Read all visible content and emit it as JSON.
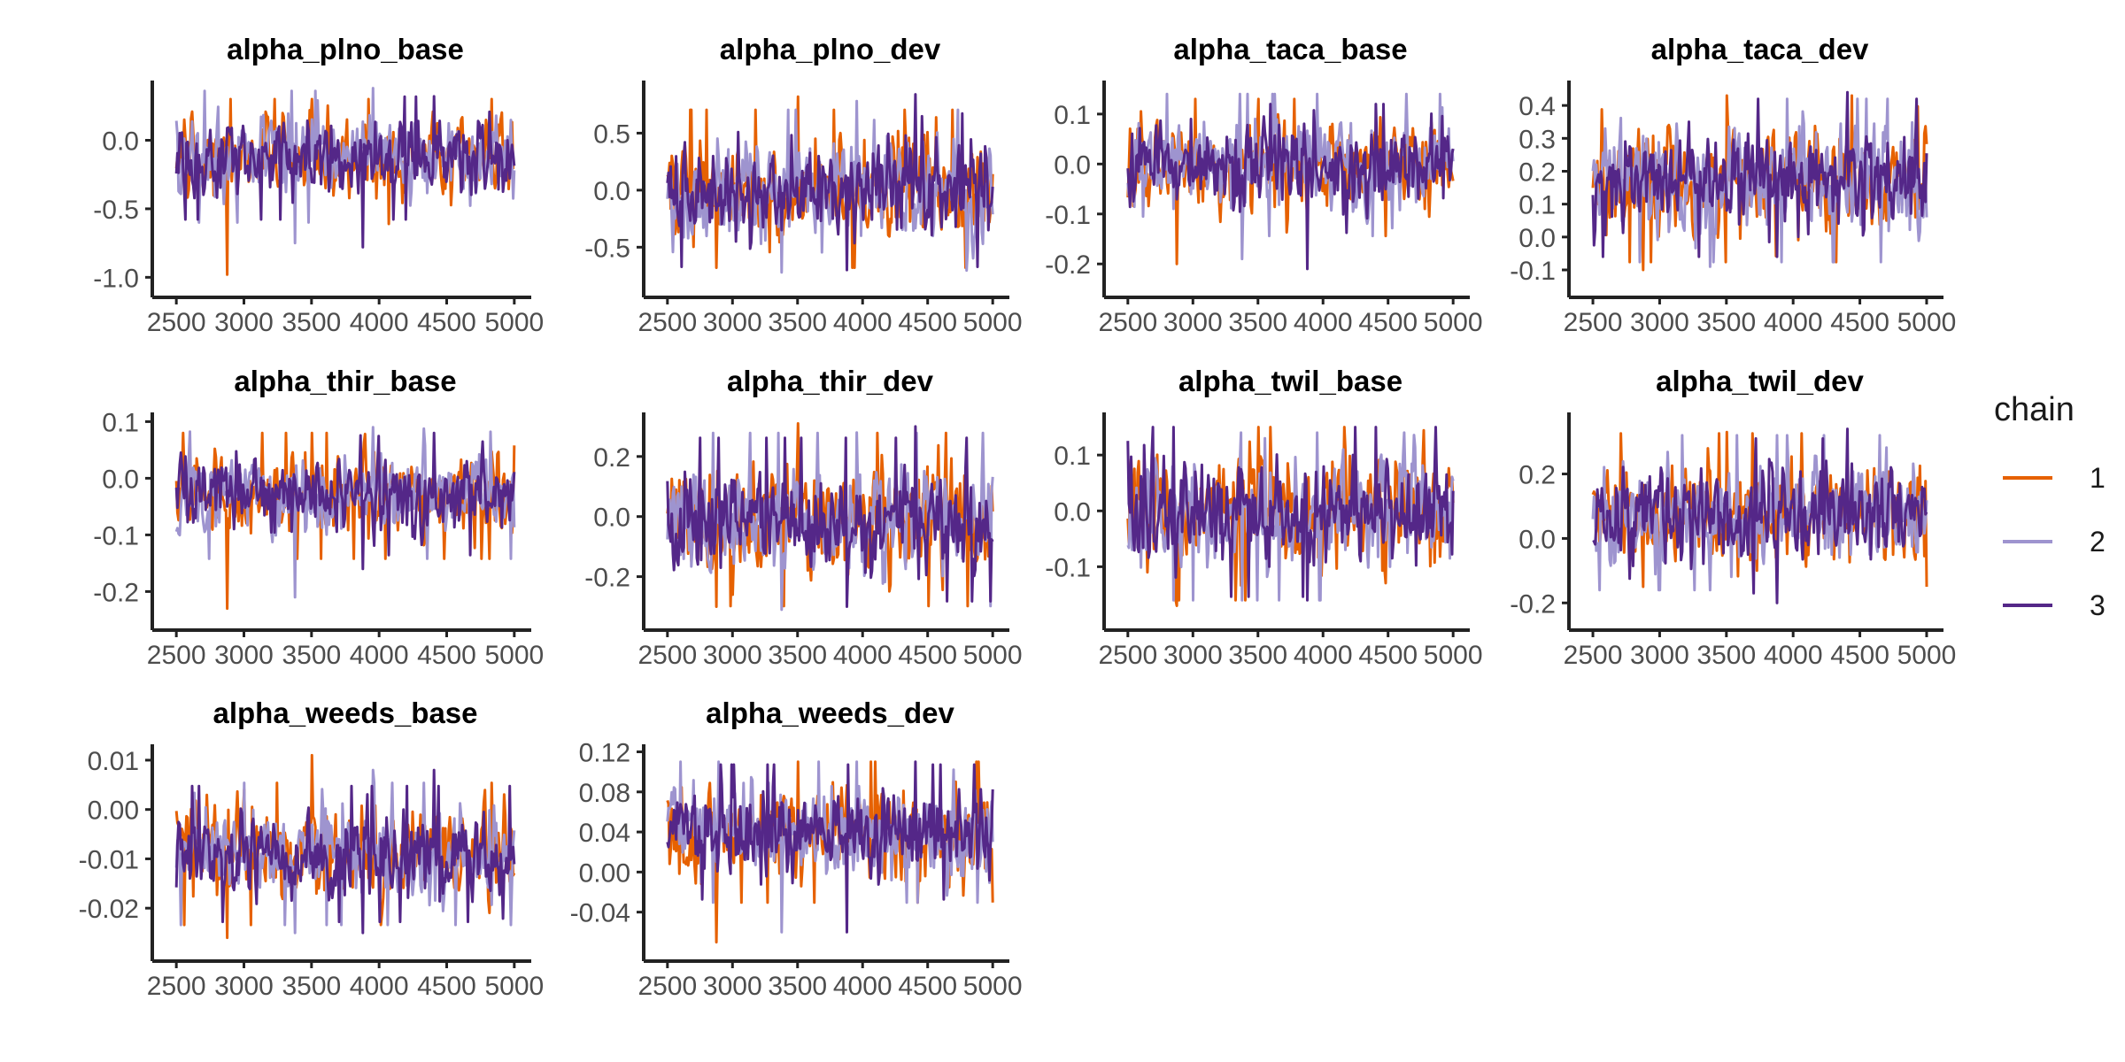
{
  "legend": {
    "title": "chain",
    "position": "right",
    "entries": [
      {
        "label": "1",
        "color": "#E66101"
      },
      {
        "label": "2",
        "color": "#9E94CF"
      },
      {
        "label": "3",
        "color": "#542788"
      }
    ]
  },
  "chart_data": [
    {
      "type": "line",
      "title": "alpha_plno_base",
      "xticks": [
        "2500",
        "3000",
        "3500",
        "4000",
        "4500",
        "5000"
      ],
      "xlim": [
        2440,
        5060
      ],
      "yticks": [
        {
          "v": 0.0,
          "label": "0.0"
        },
        {
          "v": -0.5,
          "label": "-0.5"
        },
        {
          "v": -1.0,
          "label": "-1.0"
        }
      ],
      "ylim": [
        -1.03,
        0.41
      ],
      "chains": [
        {
          "name": "1",
          "center": -0.13,
          "spread": 0.15,
          "min": -0.98,
          "max": 0.3
        },
        {
          "name": "2",
          "center": -0.12,
          "spread": 0.15,
          "min": -0.75,
          "max": 0.38
        },
        {
          "name": "3",
          "center": -0.13,
          "spread": 0.14,
          "min": -0.78,
          "max": 0.32
        }
      ]
    },
    {
      "type": "line",
      "title": "alpha_plno_dev",
      "xticks": [
        "2500",
        "3000",
        "3500",
        "4000",
        "4500",
        "5000"
      ],
      "xlim": [
        2440,
        5060
      ],
      "yticks": [
        {
          "v": 0.5,
          "label": "0.5"
        },
        {
          "v": 0.0,
          "label": "0.0"
        },
        {
          "v": -0.5,
          "label": "-0.5"
        }
      ],
      "ylim": [
        -0.8,
        0.93
      ],
      "chains": [
        {
          "name": "1",
          "center": 0.0,
          "spread": 0.22,
          "min": -0.68,
          "max": 0.82
        },
        {
          "name": "2",
          "center": 0.0,
          "spread": 0.22,
          "min": -0.72,
          "max": 0.78
        },
        {
          "name": "3",
          "center": 0.0,
          "spread": 0.21,
          "min": -0.7,
          "max": 0.84
        }
      ]
    },
    {
      "type": "line",
      "title": "alpha_taca_base",
      "xticks": [
        "2500",
        "3000",
        "3500",
        "4000",
        "4500",
        "5000"
      ],
      "xlim": [
        2440,
        5060
      ],
      "yticks": [
        {
          "v": 0.1,
          "label": "0.1"
        },
        {
          "v": 0.0,
          "label": "0.0"
        },
        {
          "v": -0.1,
          "label": "-0.1"
        },
        {
          "v": -0.2,
          "label": "-0.2"
        }
      ],
      "ylim": [
        -0.235,
        0.16
      ],
      "chains": [
        {
          "name": "1",
          "center": 0.0,
          "spread": 0.045,
          "min": -0.2,
          "max": 0.13
        },
        {
          "name": "2",
          "center": 0.0,
          "spread": 0.045,
          "min": -0.19,
          "max": 0.14
        },
        {
          "name": "3",
          "center": 0.0,
          "spread": 0.043,
          "min": -0.21,
          "max": 0.12
        }
      ]
    },
    {
      "type": "line",
      "title": "alpha_taca_dev",
      "xticks": [
        "2500",
        "3000",
        "3500",
        "4000",
        "4500",
        "5000"
      ],
      "xlim": [
        2440,
        5060
      ],
      "yticks": [
        {
          "v": 0.4,
          "label": "0.4"
        },
        {
          "v": 0.3,
          "label": "0.3"
        },
        {
          "v": 0.2,
          "label": "0.2"
        },
        {
          "v": 0.1,
          "label": "0.1"
        },
        {
          "v": 0.0,
          "label": "0.0"
        },
        {
          "v": -0.1,
          "label": "-0.1"
        }
      ],
      "ylim": [
        -0.135,
        0.465
      ],
      "chains": [
        {
          "name": "1",
          "center": 0.18,
          "spread": 0.08,
          "min": -0.1,
          "max": 0.43
        },
        {
          "name": "2",
          "center": 0.18,
          "spread": 0.08,
          "min": -0.09,
          "max": 0.42
        },
        {
          "name": "3",
          "center": 0.18,
          "spread": 0.075,
          "min": -0.06,
          "max": 0.44
        }
      ]
    },
    {
      "type": "line",
      "title": "alpha_thir_base",
      "xticks": [
        "2500",
        "3000",
        "3500",
        "4000",
        "4500",
        "5000"
      ],
      "xlim": [
        2440,
        5060
      ],
      "yticks": [
        {
          "v": 0.1,
          "label": "0.1"
        },
        {
          "v": 0.0,
          "label": "0.0"
        },
        {
          "v": -0.1,
          "label": "-0.1"
        },
        {
          "v": -0.2,
          "label": "-0.2"
        }
      ],
      "ylim": [
        -0.24,
        0.11
      ],
      "chains": [
        {
          "name": "1",
          "center": -0.03,
          "spread": 0.035,
          "min": -0.23,
          "max": 0.08
        },
        {
          "name": "2",
          "center": -0.03,
          "spread": 0.035,
          "min": -0.21,
          "max": 0.09
        },
        {
          "name": "3",
          "center": -0.03,
          "spread": 0.033,
          "min": -0.16,
          "max": 0.08
        }
      ]
    },
    {
      "type": "line",
      "title": "alpha_thir_dev",
      "xticks": [
        "2500",
        "3000",
        "3500",
        "4000",
        "4500",
        "5000"
      ],
      "xlim": [
        2440,
        5060
      ],
      "yticks": [
        {
          "v": 0.2,
          "label": "0.2"
        },
        {
          "v": 0.0,
          "label": "0.0"
        },
        {
          "v": -0.2,
          "label": "-0.2"
        }
      ],
      "ylim": [
        -0.325,
        0.335
      ],
      "chains": [
        {
          "name": "1",
          "center": -0.01,
          "spread": 0.09,
          "min": -0.3,
          "max": 0.31
        },
        {
          "name": "2",
          "center": -0.01,
          "spread": 0.09,
          "min": -0.31,
          "max": 0.28
        },
        {
          "name": "3",
          "center": -0.01,
          "spread": 0.085,
          "min": -0.3,
          "max": 0.3
        }
      ]
    },
    {
      "type": "line",
      "title": "alpha_twil_base",
      "xticks": [
        "2500",
        "3000",
        "3500",
        "4000",
        "4500",
        "5000"
      ],
      "xlim": [
        2440,
        5060
      ],
      "yticks": [
        {
          "v": 0.1,
          "label": "0.1"
        },
        {
          "v": 0.0,
          "label": "0.0"
        },
        {
          "v": -0.1,
          "label": "-0.1"
        }
      ],
      "ylim": [
        -0.185,
        0.17
      ],
      "chains": [
        {
          "name": "1",
          "center": 0.0,
          "spread": 0.05,
          "min": -0.17,
          "max": 0.15
        },
        {
          "name": "2",
          "center": 0.0,
          "spread": 0.05,
          "min": -0.16,
          "max": 0.14
        },
        {
          "name": "3",
          "center": 0.0,
          "spread": 0.048,
          "min": -0.16,
          "max": 0.15
        }
      ]
    },
    {
      "type": "line",
      "title": "alpha_twil_dev",
      "xticks": [
        "2500",
        "3000",
        "3500",
        "4000",
        "4500",
        "5000"
      ],
      "xlim": [
        2440,
        5060
      ],
      "yticks": [
        {
          "v": 0.2,
          "label": "0.2"
        },
        {
          "v": 0.0,
          "label": "0.0"
        },
        {
          "v": -0.2,
          "label": "-0.2"
        }
      ],
      "ylim": [
        -0.235,
        0.38
      ],
      "chains": [
        {
          "name": "1",
          "center": 0.07,
          "spread": 0.08,
          "min": -0.15,
          "max": 0.33
        },
        {
          "name": "2",
          "center": 0.07,
          "spread": 0.08,
          "min": -0.16,
          "max": 0.32
        },
        {
          "name": "3",
          "center": 0.07,
          "spread": 0.075,
          "min": -0.2,
          "max": 0.34
        }
      ]
    },
    {
      "type": "line",
      "title": "alpha_weeds_base",
      "xticks": [
        "2500",
        "3000",
        "3500",
        "4000",
        "4500",
        "5000"
      ],
      "xlim": [
        2440,
        5060
      ],
      "yticks": [
        {
          "v": 0.01,
          "label": "0.01"
        },
        {
          "v": 0.0,
          "label": "0.00"
        },
        {
          "v": -0.01,
          "label": "-0.01"
        },
        {
          "v": -0.02,
          "label": "-0.02"
        }
      ],
      "ylim": [
        -0.0275,
        0.0125
      ],
      "chains": [
        {
          "name": "1",
          "center": -0.009,
          "spread": 0.0045,
          "min": -0.026,
          "max": 0.011
        },
        {
          "name": "2",
          "center": -0.009,
          "spread": 0.0045,
          "min": -0.025,
          "max": 0.008
        },
        {
          "name": "3",
          "center": -0.009,
          "spread": 0.0043,
          "min": -0.025,
          "max": 0.008
        }
      ]
    },
    {
      "type": "line",
      "title": "alpha_weeds_dev",
      "xticks": [
        "2500",
        "3000",
        "3500",
        "4000",
        "4500",
        "5000"
      ],
      "xlim": [
        2440,
        5060
      ],
      "yticks": [
        {
          "v": 0.12,
          "label": "0.12"
        },
        {
          "v": 0.08,
          "label": "0.08"
        },
        {
          "v": 0.04,
          "label": "0.04"
        },
        {
          "v": 0.0,
          "label": "0.00"
        },
        {
          "v": -0.04,
          "label": "-0.04"
        }
      ],
      "ylim": [
        -0.073,
        0.124
      ],
      "chains": [
        {
          "name": "1",
          "center": 0.04,
          "spread": 0.022,
          "min": -0.07,
          "max": 0.11
        },
        {
          "name": "2",
          "center": 0.04,
          "spread": 0.022,
          "min": -0.06,
          "max": 0.11
        },
        {
          "name": "3",
          "center": 0.04,
          "spread": 0.021,
          "min": -0.06,
          "max": 0.11
        }
      ]
    }
  ]
}
